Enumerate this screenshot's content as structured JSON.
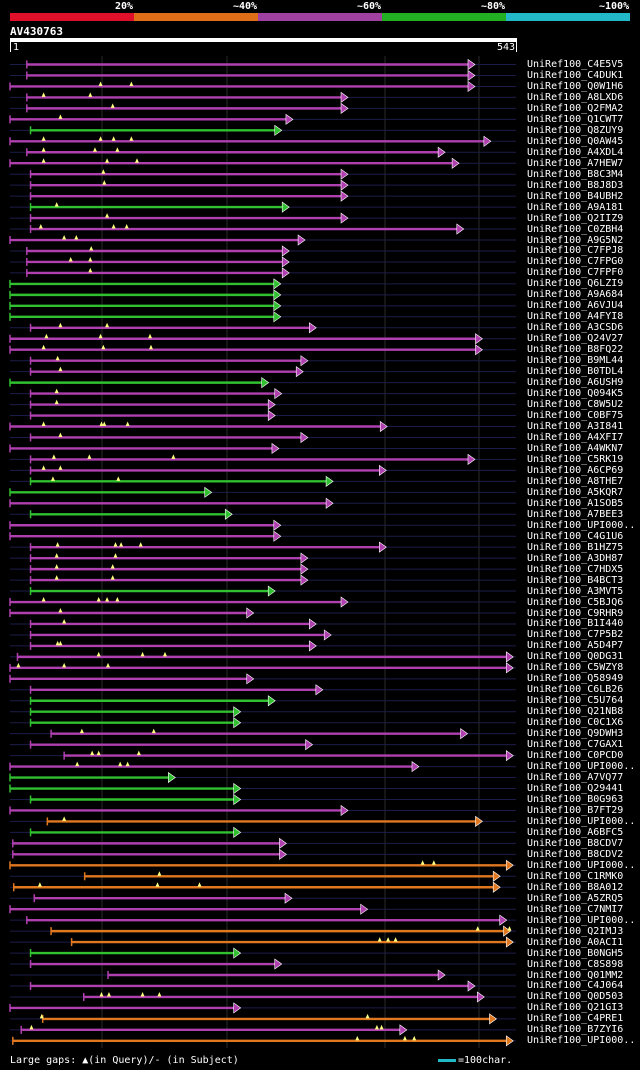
{
  "legend": {
    "labels": [
      "20%",
      "~40%",
      "~60%",
      "~80%",
      "~100%"
    ],
    "colors": [
      "#e0102a",
      "#e06e18",
      "#a040a0",
      "#22b022",
      "#22b8c8"
    ]
  },
  "query": {
    "name": "AV430763",
    "start_label": "1",
    "end_label": "543",
    "length": 543
  },
  "footer": {
    "text": "Large gaps: ▲(in Query)/- (in Subject)",
    "scale_text": "=100char."
  },
  "chart_data": {
    "type": "alignment-overview",
    "x_range": [
      1,
      543
    ],
    "hits": [
      {
        "name": "UniRef100_C4E5V5",
        "start": 19,
        "end": 498,
        "color": "purple",
        "marks": []
      },
      {
        "name": "UniRef100_C4DUK1",
        "start": 19,
        "end": 498,
        "color": "purple",
        "marks": []
      },
      {
        "name": "UniRef100_Q0W1H6",
        "start": 1,
        "end": 498,
        "color": "purple",
        "marks": [
          98,
          131
        ]
      },
      {
        "name": "UniRef100_A8LXD6",
        "start": 19,
        "end": 362,
        "color": "purple",
        "marks": [
          37,
          87
        ]
      },
      {
        "name": "UniRef100_Q2FMA2",
        "start": 19,
        "end": 362,
        "color": "purple",
        "marks": [
          111
        ]
      },
      {
        "name": "UniRef100_Q1CWT7",
        "start": 1,
        "end": 303,
        "color": "purple",
        "marks": [
          55
        ]
      },
      {
        "name": "UniRef100_Q8ZUY9",
        "start": 23,
        "end": 291,
        "color": "green",
        "marks": []
      },
      {
        "name": "UniRef100_Q0AW45",
        "start": 1,
        "end": 515,
        "color": "purple",
        "marks": [
          37,
          98,
          112,
          131
        ]
      },
      {
        "name": "UniRef100_A4XDL4",
        "start": 19,
        "end": 466,
        "color": "purple",
        "marks": [
          37,
          92,
          116
        ]
      },
      {
        "name": "UniRef100_A7HEW7",
        "start": 1,
        "end": 481,
        "color": "purple",
        "marks": [
          37,
          105,
          137
        ]
      },
      {
        "name": "UniRef100_B8C3M4",
        "start": 23,
        "end": 362,
        "color": "purple",
        "marks": [
          101
        ]
      },
      {
        "name": "UniRef100_B8J8D3",
        "start": 23,
        "end": 362,
        "color": "purple",
        "marks": [
          102
        ]
      },
      {
        "name": "UniRef100_B4UBH2",
        "start": 23,
        "end": 362,
        "color": "purple",
        "marks": []
      },
      {
        "name": "UniRef100_A9A181",
        "start": 23,
        "end": 299,
        "color": "green",
        "marks": [
          51
        ]
      },
      {
        "name": "UniRef100_Q2IIZ9",
        "start": 23,
        "end": 362,
        "color": "purple",
        "marks": [
          105
        ]
      },
      {
        "name": "UniRef100_C0ZBH4",
        "start": 23,
        "end": 486,
        "color": "purple",
        "marks": [
          34,
          112,
          126
        ]
      },
      {
        "name": "UniRef100_A9G5N2",
        "start": 1,
        "end": 316,
        "color": "purple",
        "marks": [
          59,
          72
        ]
      },
      {
        "name": "UniRef100_C7FPJ8",
        "start": 19,
        "end": 299,
        "color": "purple",
        "marks": [
          88
        ]
      },
      {
        "name": "UniRef100_C7FPG0",
        "start": 19,
        "end": 299,
        "color": "purple",
        "marks": [
          66,
          87
        ]
      },
      {
        "name": "UniRef100_C7FPF0",
        "start": 19,
        "end": 299,
        "color": "purple",
        "marks": [
          87
        ]
      },
      {
        "name": "UniRef100_Q6LZI9",
        "start": 1,
        "end": 290,
        "color": "green",
        "marks": []
      },
      {
        "name": "UniRef100_A9A684",
        "start": 1,
        "end": 290,
        "color": "green",
        "marks": []
      },
      {
        "name": "UniRef100_A6VJU4",
        "start": 1,
        "end": 290,
        "color": "green",
        "marks": []
      },
      {
        "name": "UniRef100_A4FYI8",
        "start": 1,
        "end": 290,
        "color": "green",
        "marks": []
      },
      {
        "name": "UniRef100_A3CSD6",
        "start": 23,
        "end": 328,
        "color": "purple",
        "marks": [
          55,
          105
        ]
      },
      {
        "name": "UniRef100_Q24V27",
        "start": 1,
        "end": 506,
        "color": "purple",
        "marks": [
          40,
          98,
          151
        ]
      },
      {
        "name": "UniRef100_B8FQ22",
        "start": 1,
        "end": 506,
        "color": "purple",
        "marks": [
          37,
          101,
          152
        ]
      },
      {
        "name": "UniRef100_B9ML44",
        "start": 23,
        "end": 319,
        "color": "purple",
        "marks": [
          52
        ]
      },
      {
        "name": "UniRef100_B0TDL4",
        "start": 23,
        "end": 314,
        "color": "purple",
        "marks": [
          55
        ]
      },
      {
        "name": "UniRef100_A6USH9",
        "start": 1,
        "end": 277,
        "color": "green",
        "marks": []
      },
      {
        "name": "UniRef100_Q094K5",
        "start": 23,
        "end": 291,
        "color": "purple",
        "marks": [
          51
        ]
      },
      {
        "name": "UniRef100_C8W5U2",
        "start": 23,
        "end": 284,
        "color": "purple",
        "marks": [
          51
        ]
      },
      {
        "name": "UniRef100_C0BF75",
        "start": 23,
        "end": 284,
        "color": "purple",
        "marks": []
      },
      {
        "name": "UniRef100_A3I841",
        "start": 1,
        "end": 404,
        "color": "purple",
        "marks": [
          37,
          99,
          102,
          127
        ]
      },
      {
        "name": "UniRef100_A4XFI7",
        "start": 23,
        "end": 319,
        "color": "purple",
        "marks": [
          55
        ]
      },
      {
        "name": "UniRef100_A4WKN7",
        "start": 1,
        "end": 288,
        "color": "purple",
        "marks": []
      },
      {
        "name": "UniRef100_C5RK19",
        "start": 23,
        "end": 498,
        "color": "purple",
        "marks": [
          48,
          86,
          176
        ]
      },
      {
        "name": "UniRef100_A6CP69",
        "start": 23,
        "end": 403,
        "color": "purple",
        "marks": [
          37,
          55
        ]
      },
      {
        "name": "UniRef100_A8THE7",
        "start": 23,
        "end": 346,
        "color": "green",
        "marks": [
          47,
          117
        ]
      },
      {
        "name": "UniRef100_A5KQR7",
        "start": 1,
        "end": 216,
        "color": "green",
        "marks": []
      },
      {
        "name": "UniRef100_A1SOB5",
        "start": 1,
        "end": 346,
        "color": "purple",
        "marks": []
      },
      {
        "name": "UniRef100_A7BEE3",
        "start": 23,
        "end": 238,
        "color": "green",
        "marks": []
      },
      {
        "name": "UniRef100_UPI000..",
        "start": 1,
        "end": 290,
        "color": "purple",
        "marks": []
      },
      {
        "name": "UniRef100_C4G1U6",
        "start": 1,
        "end": 290,
        "color": "purple",
        "marks": []
      },
      {
        "name": "UniRef100_B1HZ75",
        "start": 23,
        "end": 403,
        "color": "purple",
        "marks": [
          52,
          114,
          120,
          141
        ]
      },
      {
        "name": "UniRef100_A3DH87",
        "start": 23,
        "end": 319,
        "color": "purple",
        "marks": [
          51,
          114
        ]
      },
      {
        "name": "UniRef100_C7HDX5",
        "start": 23,
        "end": 319,
        "color": "purple",
        "marks": [
          51,
          111
        ]
      },
      {
        "name": "UniRef100_B4BCT3",
        "start": 23,
        "end": 319,
        "color": "purple",
        "marks": [
          51,
          111
        ]
      },
      {
        "name": "UniRef100_A3MVT5",
        "start": 23,
        "end": 284,
        "color": "green",
        "marks": []
      },
      {
        "name": "UniRef100_C5BJQ6",
        "start": 1,
        "end": 362,
        "color": "purple",
        "marks": [
          37,
          96,
          105,
          116
        ]
      },
      {
        "name": "UniRef100_C9RHR9",
        "start": 1,
        "end": 261,
        "color": "purple",
        "marks": [
          55
        ]
      },
      {
        "name": "UniRef100_B1I440",
        "start": 23,
        "end": 328,
        "color": "purple",
        "marks": [
          59
        ]
      },
      {
        "name": "UniRef100_C7P5B2",
        "start": 23,
        "end": 344,
        "color": "purple",
        "marks": []
      },
      {
        "name": "UniRef100_A5D4P7",
        "start": 23,
        "end": 328,
        "color": "purple",
        "marks": [
          52,
          55
        ]
      },
      {
        "name": "UniRef100_Q0DG31",
        "start": 9,
        "end": 539,
        "color": "purple",
        "marks": [
          96,
          143,
          167
        ]
      },
      {
        "name": "UniRef100_C5WZY8",
        "start": 1,
        "end": 539,
        "color": "purple",
        "marks": [
          10,
          59,
          106
        ]
      },
      {
        "name": "UniRef100_Q58949",
        "start": 1,
        "end": 261,
        "color": "purple",
        "marks": []
      },
      {
        "name": "UniRef100_C6LB26",
        "start": 23,
        "end": 335,
        "color": "purple",
        "marks": []
      },
      {
        "name": "UniRef100_C5U764",
        "start": 23,
        "end": 284,
        "color": "green",
        "marks": []
      },
      {
        "name": "UniRef100_Q21NB8",
        "start": 23,
        "end": 247,
        "color": "green",
        "marks": []
      },
      {
        "name": "UniRef100_C0C1X6",
        "start": 23,
        "end": 247,
        "color": "green",
        "marks": []
      },
      {
        "name": "UniRef100_Q9DWH3",
        "start": 45,
        "end": 490,
        "color": "purple",
        "marks": [
          78,
          155
        ]
      },
      {
        "name": "UniRef100_C7GAX1",
        "start": 23,
        "end": 324,
        "color": "purple",
        "marks": []
      },
      {
        "name": "UniRef100_C0PCD0",
        "start": 59,
        "end": 539,
        "color": "purple",
        "marks": [
          89,
          96,
          139
        ]
      },
      {
        "name": "UniRef100_UPI000..",
        "start": 1,
        "end": 438,
        "color": "purple",
        "marks": [
          73,
          119,
          127
        ]
      },
      {
        "name": "UniRef100_A7VQ77",
        "start": 1,
        "end": 177,
        "color": "green",
        "marks": []
      },
      {
        "name": "UniRef100_Q29441",
        "start": 1,
        "end": 247,
        "color": "green",
        "marks": []
      },
      {
        "name": "UniRef100_B0G963",
        "start": 23,
        "end": 247,
        "color": "green",
        "marks": []
      },
      {
        "name": "UniRef100_B7FT29",
        "start": 1,
        "end": 362,
        "color": "purple",
        "marks": []
      },
      {
        "name": "UniRef100_UPI000..",
        "start": 41,
        "end": 506,
        "color": "orange",
        "marks": [
          59
        ]
      },
      {
        "name": "UniRef100_A6BFC5",
        "start": 23,
        "end": 247,
        "color": "green",
        "marks": []
      },
      {
        "name": "UniRef100_B8CDV7",
        "start": 4,
        "end": 296,
        "color": "purple",
        "marks": []
      },
      {
        "name": "UniRef100_B8CDV2",
        "start": 4,
        "end": 296,
        "color": "purple",
        "marks": []
      },
      {
        "name": "UniRef100_UPI000..",
        "start": 1,
        "end": 539,
        "color": "orange",
        "marks": [
          443,
          455
        ]
      },
      {
        "name": "UniRef100_C1RMK0",
        "start": 81,
        "end": 525,
        "color": "orange",
        "marks": [
          161
        ]
      },
      {
        "name": "UniRef100_B8A012",
        "start": 5,
        "end": 525,
        "color": "orange",
        "marks": [
          33,
          159,
          204
        ]
      },
      {
        "name": "UniRef100_A5ZRQ5",
        "start": 27,
        "end": 302,
        "color": "purple",
        "marks": []
      },
      {
        "name": "UniRef100_C7NMI7",
        "start": 1,
        "end": 383,
        "color": "purple",
        "marks": []
      },
      {
        "name": "UniRef100_UPI000..",
        "start": 19,
        "end": 532,
        "color": "purple",
        "marks": []
      },
      {
        "name": "UniRef100_Q2IMJ3",
        "start": 45,
        "end": 536,
        "color": "orange",
        "marks": [
          502,
          536
        ]
      },
      {
        "name": "UniRef100_A0ACI1",
        "start": 67,
        "end": 539,
        "color": "orange",
        "marks": [
          397,
          406,
          414
        ]
      },
      {
        "name": "UniRef100_B0NGH5",
        "start": 23,
        "end": 247,
        "color": "green",
        "marks": []
      },
      {
        "name": "UniRef100_C8S898",
        "start": 23,
        "end": 291,
        "color": "purple",
        "marks": []
      },
      {
        "name": "UniRef100_Q01MM2",
        "start": 106,
        "end": 466,
        "color": "purple",
        "marks": []
      },
      {
        "name": "UniRef100_C4J064",
        "start": 23,
        "end": 498,
        "color": "purple",
        "marks": []
      },
      {
        "name": "UniRef100_Q0D503",
        "start": 80,
        "end": 508,
        "color": "purple",
        "marks": [
          99,
          107,
          143,
          161
        ]
      },
      {
        "name": "UniRef100_Q21GI3",
        "start": 1,
        "end": 247,
        "color": "purple",
        "marks": []
      },
      {
        "name": "UniRef100_C4PRE1",
        "start": 36,
        "end": 521,
        "color": "orange",
        "marks": [
          35,
          384
        ]
      },
      {
        "name": "UniRef100_B7ZYI6",
        "start": 13,
        "end": 425,
        "color": "purple",
        "marks": [
          24,
          394,
          399
        ]
      },
      {
        "name": "UniRef100_UPI000..",
        "start": 4,
        "end": 539,
        "color": "orange",
        "marks": [
          373,
          424,
          434
        ]
      }
    ]
  }
}
